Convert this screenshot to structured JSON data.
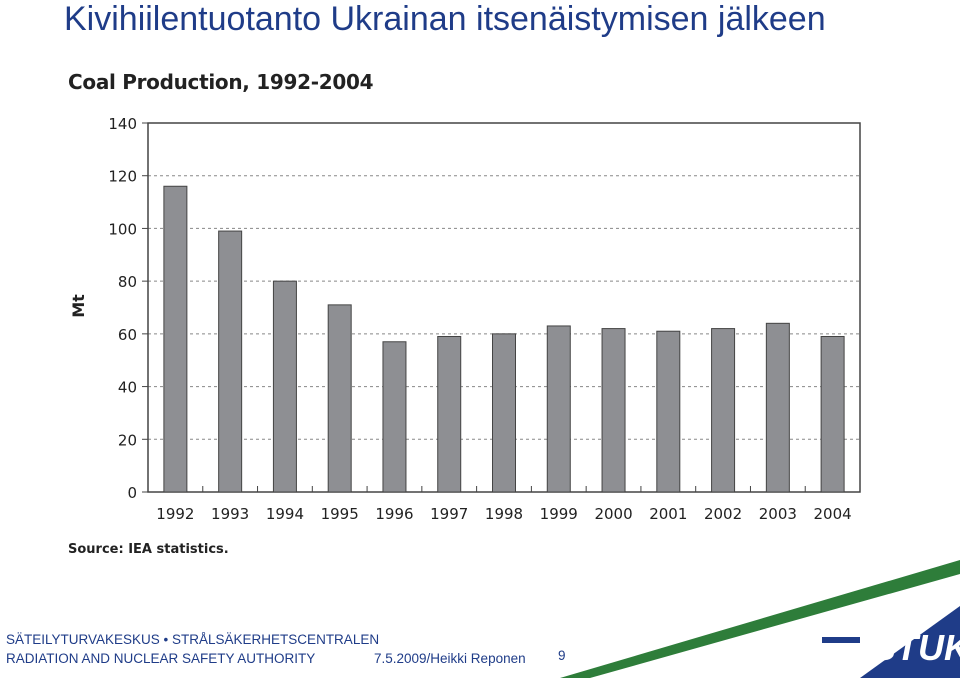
{
  "slide": {
    "title": "Kivihiilentuotanto Ukrainan itsenäistymisen jälkeen"
  },
  "footer": {
    "org_line1": "SÄTEILYTURVAKESKUS • STRÅLSÄKERHETSCENTRALEN",
    "org_line2": "RADIATION AND NUCLEAR SAFETY AUTHORITY",
    "meta": "7.5.2009/Heikki Reponen",
    "page": "9",
    "logo_text": "STUK"
  },
  "colors": {
    "title": "#1f3c88",
    "bar": "#8e8f93",
    "logo_green": "#2e7d3a",
    "logo_blue": "#1f3c88"
  },
  "chart_data": {
    "type": "bar",
    "title": "Coal Production, 1992-2004",
    "ylabel": "Mt",
    "xlabel": "",
    "categories": [
      "1992",
      "1993",
      "1994",
      "1995",
      "1996",
      "1997",
      "1998",
      "1999",
      "2000",
      "2001",
      "2002",
      "2003",
      "2004"
    ],
    "values": [
      116,
      99,
      80,
      71,
      57,
      59,
      60,
      63,
      62,
      61,
      62,
      64,
      59
    ],
    "ylim": [
      0,
      140
    ],
    "yticks": [
      0,
      20,
      40,
      60,
      80,
      100,
      120,
      140
    ],
    "grid": "dashed horizontal",
    "source": "Source: IEA statistics."
  }
}
